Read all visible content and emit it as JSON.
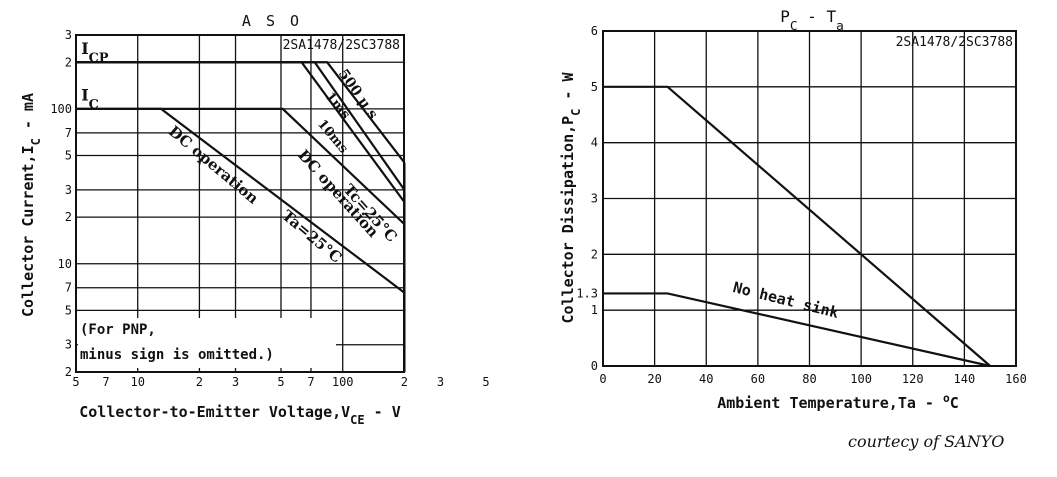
{
  "chart_data": [
    {
      "type": "line",
      "title": "A S O",
      "part_number": "2SA1478/2SC3788",
      "xlabel_main": "Collector-to-Emitter Voltage,V",
      "xlabel_sub": "CE",
      "xlabel_unit": " - V",
      "ylabel_main": "Collector Current,I",
      "ylabel_sub": "C",
      "ylabel_unit": " - mA",
      "x_scale": "log",
      "y_scale": "log",
      "xlim": [
        5,
        500
      ],
      "ylim": [
        2,
        300
      ],
      "x_tick_labels": [
        {
          "v": 5,
          "t": "5"
        },
        {
          "v": 7,
          "t": "7"
        },
        {
          "v": 10,
          "t": "10"
        },
        {
          "v": 20,
          "t": "2"
        },
        {
          "v": 30,
          "t": "3"
        },
        {
          "v": 50,
          "t": "5"
        },
        {
          "v": 70,
          "t": "7"
        },
        {
          "v": 100,
          "t": "100"
        },
        {
          "v": 200,
          "t": "2"
        },
        {
          "v": 300,
          "t": "3"
        },
        {
          "v": 500,
          "t": "5"
        }
      ],
      "y_tick_labels": [
        {
          "v": 2,
          "t": "2"
        },
        {
          "v": 3,
          "t": "3"
        },
        {
          "v": 5,
          "t": "5"
        },
        {
          "v": 7,
          "t": "7"
        },
        {
          "v": 10,
          "t": "10"
        },
        {
          "v": 20,
          "t": "2"
        },
        {
          "v": 30,
          "t": "3"
        },
        {
          "v": 50,
          "t": "5"
        },
        {
          "v": 70,
          "t": "7"
        },
        {
          "v": 100,
          "t": "100"
        },
        {
          "v": 200,
          "t": "2"
        },
        {
          "v": 300,
          "t": "3"
        }
      ],
      "grid": true,
      "series": [
        {
          "name": "500 μs",
          "x": [
            5,
            84,
            200
          ],
          "y": [
            200,
            200,
            45
          ]
        },
        {
          "name": "1ms",
          "x": [
            5,
            73,
            200
          ],
          "y": [
            200,
            200,
            30
          ]
        },
        {
          "name": "10ms",
          "x": [
            5,
            63,
            200
          ],
          "y": [
            200,
            200,
            25
          ]
        },
        {
          "name": "DC operation Tc=25°C",
          "x": [
            5,
            51,
            200
          ],
          "y": [
            100,
            100,
            18
          ]
        },
        {
          "name": "DC operation Ta=25°C",
          "x": [
            5,
            13,
            200
          ],
          "y": [
            100,
            100,
            6.5
          ]
        },
        {
          "name": "",
          "x": [
            200,
            200
          ],
          "y": [
            2,
            45
          ]
        }
      ],
      "annotations": [
        {
          "text_main": "I",
          "text_sub": "CP",
          "x": 5.3,
          "y": 220
        },
        {
          "text_main": "I",
          "text_sub": "C",
          "x": 5.3,
          "y": 110
        },
        {
          "text": "500 μ s",
          "x": 95,
          "y": 170
        },
        {
          "text": "1ms",
          "x": 82,
          "y": 120
        },
        {
          "text": "10ms",
          "x": 75,
          "y": 80
        },
        {
          "text": "DC operation",
          "x": 60,
          "y": 50
        },
        {
          "text": "Tc=25°C",
          "x": 100,
          "y": 30
        },
        {
          "text": "DC operation",
          "x": 14,
          "y": 70
        },
        {
          "text": "Ta=25°C",
          "x": 50,
          "y": 20
        }
      ],
      "note_lines": [
        "(For PNP,",
        "minus sign is omitted.)"
      ]
    },
    {
      "type": "line",
      "title_main": "P",
      "title_sub": "C",
      "title_mid": " - T",
      "title_sub2": "a",
      "part_number": "2SA1478/2SC3788",
      "xlabel_main": "Ambient Temperature,Ta - ",
      "xlabel_sup": "o",
      "xlabel_unit": "C",
      "ylabel_main": "Collector Dissipation,P",
      "ylabel_sub": "C",
      "ylabel_unit": " - W",
      "xlim": [
        0,
        160
      ],
      "ylim": [
        0,
        6
      ],
      "x_ticks": [
        0,
        20,
        40,
        60,
        80,
        100,
        120,
        140,
        160
      ],
      "y_ticks": [
        0,
        1,
        2,
        3,
        4,
        5,
        6
      ],
      "extra_y_tick": {
        "v": 1.3,
        "t": "1.3"
      },
      "grid": true,
      "series": [
        {
          "name": "",
          "x": [
            0,
            25,
            150
          ],
          "y": [
            5,
            5,
            0
          ]
        },
        {
          "name": "No heat sink",
          "x": [
            0,
            25,
            150
          ],
          "y": [
            1.3,
            1.3,
            0
          ]
        }
      ],
      "annotations": [
        {
          "text": "No heat sink",
          "x": 50,
          "y": 1.15
        }
      ]
    }
  ],
  "credit": "courtecy of SANYO"
}
